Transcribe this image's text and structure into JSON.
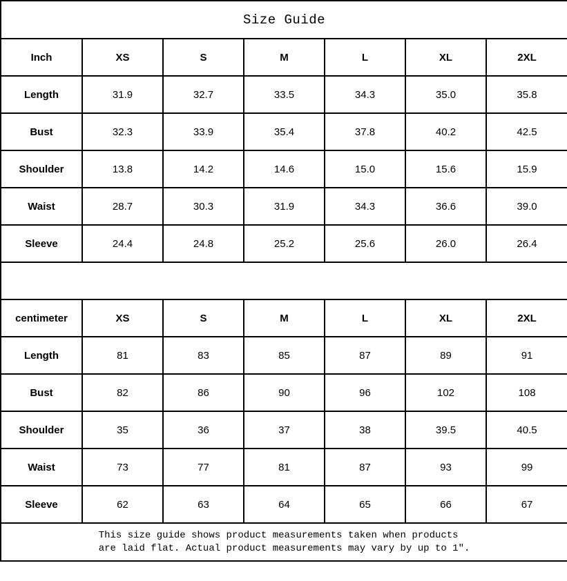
{
  "title": "Size Guide",
  "chart_data": [
    {
      "type": "table",
      "unit_label": "Inch",
      "columns": [
        "XS",
        "S",
        "M",
        "L",
        "XL",
        "2XL"
      ],
      "rows": [
        {
          "label": "Length",
          "values": [
            "31.9",
            "32.7",
            "33.5",
            "34.3",
            "35.0",
            "35.8"
          ]
        },
        {
          "label": "Bust",
          "values": [
            "32.3",
            "33.9",
            "35.4",
            "37.8",
            "40.2",
            "42.5"
          ]
        },
        {
          "label": "Shoulder",
          "values": [
            "13.8",
            "14.2",
            "14.6",
            "15.0",
            "15.6",
            "15.9"
          ]
        },
        {
          "label": "Waist",
          "values": [
            "28.7",
            "30.3",
            "31.9",
            "34.3",
            "36.6",
            "39.0"
          ]
        },
        {
          "label": "Sleeve",
          "values": [
            "24.4",
            "24.8",
            "25.2",
            "25.6",
            "26.0",
            "26.4"
          ]
        }
      ]
    },
    {
      "type": "table",
      "unit_label": "centimeter",
      "columns": [
        "XS",
        "S",
        "M",
        "L",
        "XL",
        "2XL"
      ],
      "rows": [
        {
          "label": "Length",
          "values": [
            "81",
            "83",
            "85",
            "87",
            "89",
            "91"
          ]
        },
        {
          "label": "Bust",
          "values": [
            "82",
            "86",
            "90",
            "96",
            "102",
            "108"
          ]
        },
        {
          "label": "Shoulder",
          "values": [
            "35",
            "36",
            "37",
            "38",
            "39.5",
            "40.5"
          ]
        },
        {
          "label": "Waist",
          "values": [
            "73",
            "77",
            "81",
            "87",
            "93",
            "99"
          ]
        },
        {
          "label": "Sleeve",
          "values": [
            "62",
            "63",
            "64",
            "65",
            "66",
            "67"
          ]
        }
      ]
    }
  ],
  "footer": {
    "line1": "This size guide shows product measurements taken when products",
    "line2": "are laid flat. Actual product measurements may vary by up to 1″."
  },
  "colors": {
    "border": "#000000",
    "text": "#000000",
    "background": "#ffffff"
  }
}
